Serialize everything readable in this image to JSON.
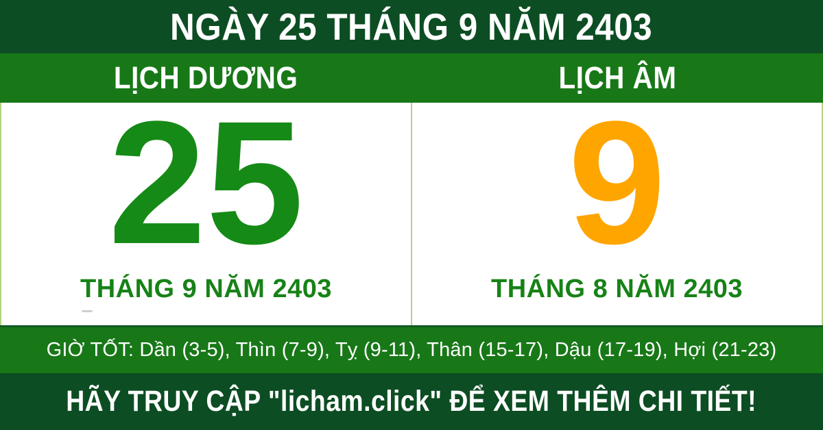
{
  "header": {
    "title": "NGÀY 25 THÁNG 9 NĂM 2403"
  },
  "subheader": {
    "solar_label": "LỊCH DƯƠNG",
    "lunar_label": "LỊCH ÂM"
  },
  "solar": {
    "day": "25",
    "month_year": "THÁNG 9 NĂM 2403"
  },
  "lunar": {
    "day": "9",
    "month_year": "THÁNG 8 NĂM 2403"
  },
  "good_hours": {
    "text": "GIỜ TỐT: Dần (3-5), Thìn (7-9), Tỵ (9-11), Thân (15-17), Dậu (17-19), Hợi (21-23)"
  },
  "footer": {
    "cta": "HÃY TRUY CẬP \"licham.click\" ĐỂ XEM THÊM CHI TIẾT!"
  },
  "colors": {
    "dark_green_band": "#0d4d23",
    "bright_green_band": "#187818",
    "panel_white": "#ffffff",
    "divider_light_green": "#aed581",
    "solar_day_green": "#168a16",
    "lunar_day_orange": "#ffa500",
    "month_label_green": "#178217",
    "text_white": "#ffffff"
  }
}
